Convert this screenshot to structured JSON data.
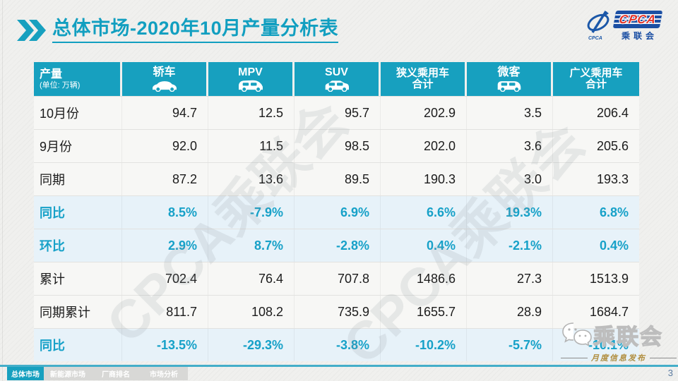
{
  "title": "总体市场-2020年10月产量分析表",
  "top_logo": {
    "cpca": "CPCA",
    "name_cn": "乘联会",
    "swoosh_caption": "CPCA"
  },
  "chart_data": {
    "type": "table",
    "title": "总体市场-2020年10月产量分析表",
    "corner_label": "产量",
    "corner_unit": "(单位: 万辆)",
    "columns": [
      {
        "label": "轿车",
        "icon": "sedan-icon"
      },
      {
        "label": "MPV",
        "icon": "mpv-icon"
      },
      {
        "label": "SUV",
        "icon": "suv-icon"
      },
      {
        "label": "狭义乘用车",
        "sublabel": "合计"
      },
      {
        "label": "微客",
        "icon": "minibus-icon"
      },
      {
        "label": "广义乘用车",
        "sublabel": "合计"
      }
    ],
    "rows": [
      {
        "label": "10月份",
        "type": "data",
        "values": [
          "94.7",
          "12.5",
          "95.7",
          "202.9",
          "3.5",
          "206.4"
        ]
      },
      {
        "label": "9月份",
        "type": "data",
        "values": [
          "92.0",
          "11.5",
          "98.5",
          "202.0",
          "3.6",
          "205.6"
        ]
      },
      {
        "label": "同期",
        "type": "data",
        "values": [
          "87.2",
          "13.6",
          "89.5",
          "190.3",
          "3.0",
          "193.3"
        ]
      },
      {
        "label": "同比",
        "type": "percent",
        "values": [
          "8.5%",
          "-7.9%",
          "6.9%",
          "6.6%",
          "19.3%",
          "6.8%"
        ]
      },
      {
        "label": "环比",
        "type": "percent",
        "values": [
          "2.9%",
          "8.7%",
          "-2.8%",
          "0.4%",
          "-2.1%",
          "0.4%"
        ]
      },
      {
        "label": "累计",
        "type": "data",
        "values": [
          "702.4",
          "76.4",
          "707.8",
          "1486.6",
          "27.3",
          "1513.9"
        ]
      },
      {
        "label": "同期累计",
        "type": "data",
        "values": [
          "811.7",
          "108.2",
          "735.9",
          "1655.7",
          "28.9",
          "1684.7"
        ]
      },
      {
        "label": "同比",
        "type": "percent",
        "values": [
          "-13.5%",
          "-29.3%",
          "-3.8%",
          "-10.2%",
          "-5.7%",
          "-10.1%"
        ]
      }
    ]
  },
  "watermark_text": "CPCA乘联会",
  "footer": {
    "tabs": [
      {
        "label": "总体市场",
        "active": true
      },
      {
        "label": "新能源市场",
        "active": false
      },
      {
        "label": "厂商排名",
        "active": false
      },
      {
        "label": "市场分析",
        "active": false
      }
    ],
    "assoc_name": "乘联会",
    "tagline": "月度信息发布",
    "page": "3"
  },
  "colors": {
    "accent_teal": "#17a0bf",
    "percent_text": "#17a1c8",
    "percent_row_bg": "#e7f2f9",
    "logo_blue": "#1b4fa3",
    "logo_red": "#e23127",
    "gold": "#b08d3e"
  }
}
